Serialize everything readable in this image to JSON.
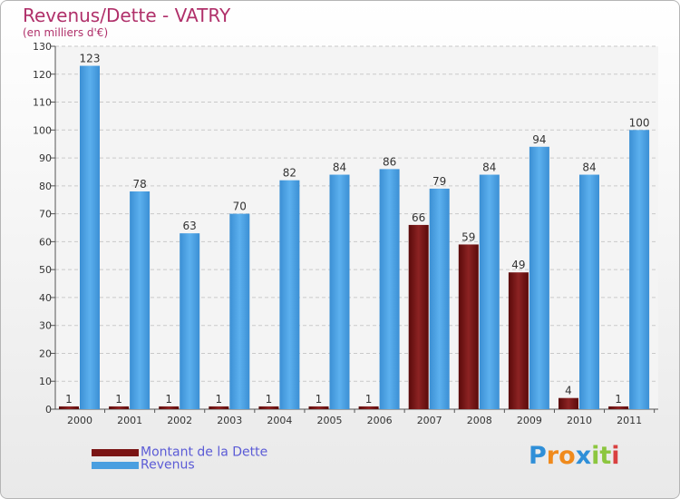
{
  "chart_data": {
    "type": "bar",
    "title": "Revenus/Dette - VATRY",
    "subtitle": "(en milliers d'€)",
    "categories": [
      "2000",
      "2001",
      "2002",
      "2003",
      "2004",
      "2005",
      "2006",
      "2007",
      "2008",
      "2009",
      "2010",
      "2011"
    ],
    "series": [
      {
        "name": "Montant de la Dette",
        "color": "#7a1414",
        "values": [
          1,
          1,
          1,
          1,
          1,
          1,
          1,
          66,
          59,
          49,
          4,
          1
        ]
      },
      {
        "name": "Revenus",
        "color": "#4a9fe0",
        "values": [
          123,
          78,
          63,
          70,
          82,
          84,
          86,
          79,
          84,
          94,
          84,
          100
        ]
      }
    ],
    "ylim": [
      0,
      130
    ],
    "yticks": [
      0,
      10,
      20,
      30,
      40,
      50,
      60,
      70,
      80,
      90,
      100,
      110,
      120,
      130
    ],
    "grid": true,
    "legend": "bottom-left"
  },
  "logo": {
    "letters": [
      "P",
      "r",
      "o",
      "x",
      "i",
      "t",
      "i"
    ],
    "colors": [
      "#2f8fd8",
      "#f08a1c",
      "#f08a1c",
      "#2f8fd8",
      "#8cc63f",
      "#8cc63f",
      "#d94040"
    ]
  }
}
